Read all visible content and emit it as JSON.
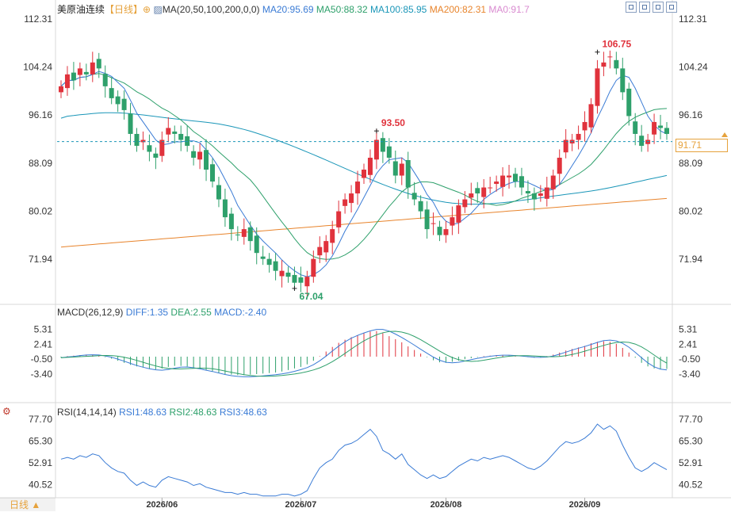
{
  "header": {
    "title": "美原油连续",
    "period": "【日线】",
    "dropdown_icon": "chevron-circle-icon",
    "ma_label": "MA(20,50,100,200,0,0)",
    "ma_values": [
      {
        "text": "MA20:95.69",
        "color": "#3a7bd5"
      },
      {
        "text": "MA50:88.32",
        "color": "#2ea06b"
      },
      {
        "text": "MA100:85.95",
        "color": "#1a96b8"
      },
      {
        "text": "MA200:82.31",
        "color": "#e8842c"
      },
      {
        "text": "MA0:91.7",
        "color": "#d98bd0"
      }
    ],
    "toolbar_icons": [
      "zoom-in-icon",
      "zoom-out-icon",
      "fit-icon",
      "fullscreen-icon"
    ]
  },
  "macd_header": {
    "label": "MACD(26,12,9)",
    "values": [
      {
        "text": "DIFF:1.35",
        "color": "#3a7bd5"
      },
      {
        "text": "DEA:2.55",
        "color": "#2ea06b"
      },
      {
        "text": "MACD:-2.40",
        "color": "#3a7bd5"
      }
    ]
  },
  "rsi_header": {
    "label": "RSI(14,14,14)",
    "values": [
      {
        "text": "RSI1:48.63",
        "color": "#3a7bd5"
      },
      {
        "text": "RSI2:48.63",
        "color": "#2ea06b"
      },
      {
        "text": "RSI3:48.63",
        "color": "#3a7bd5"
      }
    ]
  },
  "footer": {
    "period_button": "日线 ▲"
  },
  "current_price": "91.71",
  "chart_data": {
    "type": "candlestick",
    "price_axis": {
      "ticks": [
        112.31,
        104.24,
        96.16,
        88.09,
        80.02,
        71.94
      ],
      "range": [
        64.5,
        113.5
      ]
    },
    "macd_axis": {
      "ticks": [
        5.31,
        2.41,
        -0.5,
        -3.4
      ],
      "range": [
        -8.5,
        8.5
      ]
    },
    "rsi_axis": {
      "ticks": [
        77.7,
        65.3,
        52.91,
        40.52
      ],
      "range": [
        33,
        80
      ]
    },
    "x_labels": [
      {
        "label": "2026/06",
        "index": 16
      },
      {
        "label": "2026/07",
        "index": 38
      },
      {
        "label": "2026/08",
        "index": 61
      },
      {
        "label": "2026/09",
        "index": 83
      }
    ],
    "annotations": [
      {
        "label": "106.75",
        "index": 85,
        "value": 106.75,
        "color": "#e0323c",
        "type": "high"
      },
      {
        "label": "93.50",
        "index": 50,
        "value": 93.5,
        "color": "#e0323c",
        "type": "high"
      },
      {
        "label": "67.04",
        "index": 37,
        "value": 67.04,
        "color": "#2ea06b",
        "type": "low"
      }
    ],
    "closes": [
      101,
      103,
      102,
      104,
      103,
      105,
      104,
      101,
      99,
      98,
      97,
      93,
      91,
      92,
      90,
      89,
      92,
      94,
      93,
      92,
      91,
      89,
      90,
      87,
      85,
      82,
      79,
      77,
      76,
      77,
      75,
      73,
      72,
      71,
      70,
      70,
      69,
      68,
      68,
      69,
      72,
      74,
      75,
      77,
      80,
      82,
      83,
      85,
      87,
      89,
      92,
      90,
      89,
      86,
      88,
      84,
      82,
      80,
      77,
      78,
      76,
      77,
      79,
      81,
      82,
      83,
      83,
      84,
      84,
      85,
      86,
      86,
      85,
      84,
      83,
      82,
      83,
      84,
      86,
      89,
      92,
      92,
      93,
      95,
      98,
      104,
      105,
      106,
      104,
      100,
      96,
      93,
      91,
      92,
      95,
      94,
      93
    ],
    "macd_hist": [
      -0.2,
      0.1,
      0.2,
      0.3,
      0.4,
      0.3,
      0.2,
      -0.1,
      -0.4,
      -0.8,
      -1.2,
      -1.6,
      -1.9,
      -2.1,
      -2.4,
      -2.5,
      -2.3,
      -2.0,
      -1.8,
      -1.8,
      -1.9,
      -2.2,
      -2.4,
      -2.6,
      -2.9,
      -3.2,
      -3.4,
      -3.5,
      -3.6,
      -3.6,
      -3.5,
      -3.4,
      -3.3,
      -3.2,
      -3.1,
      -2.9,
      -2.6,
      -2.3,
      -2.0,
      -1.5,
      -0.8,
      0.1,
      1.0,
      1.9,
      2.7,
      3.3,
      3.8,
      4.2,
      4.6,
      4.9,
      5.0,
      4.6,
      4.0,
      3.4,
      2.8,
      2.0,
      1.3,
      0.6,
      -0.1,
      -0.7,
      -1.1,
      -1.2,
      -1.0,
      -0.8,
      -0.5,
      -0.3,
      -0.1,
      0.1,
      0.2,
      0.3,
      0.3,
      0.2,
      0.1,
      0.0,
      -0.1,
      -0.2,
      -0.1,
      0.1,
      0.4,
      0.8,
      1.2,
      1.5,
      1.8,
      2.1,
      2.6,
      2.9,
      3.0,
      2.9,
      2.5,
      1.7,
      0.8,
      -0.2,
      -1.2,
      -1.9,
      -2.3,
      -2.4,
      -2.4
    ],
    "rsi": [
      55,
      56,
      55,
      57,
      56,
      58,
      57,
      53,
      50,
      48,
      47,
      43,
      40,
      42,
      40,
      39,
      43,
      45,
      44,
      43,
      42,
      40,
      41,
      39,
      38,
      37,
      36,
      36,
      35,
      36,
      35,
      35,
      34,
      34,
      34,
      35,
      35,
      34,
      35,
      37,
      44,
      50,
      53,
      55,
      60,
      63,
      64,
      66,
      69,
      72,
      68,
      60,
      58,
      55,
      58,
      52,
      49,
      46,
      44,
      46,
      44,
      45,
      48,
      51,
      53,
      55,
      54,
      56,
      55,
      56,
      57,
      56,
      54,
      52,
      50,
      49,
      51,
      54,
      58,
      62,
      65,
      64,
      65,
      67,
      70,
      75,
      72,
      74,
      71,
      63,
      56,
      50,
      48,
      50,
      53,
      51,
      49
    ],
    "series_colors": {
      "ma20": "#3a7bd5",
      "ma50": "#2ea06b",
      "ma100": "#1a96b8",
      "ma200": "#e8842c",
      "up": "#e0323c",
      "down": "#2ea06b"
    }
  }
}
